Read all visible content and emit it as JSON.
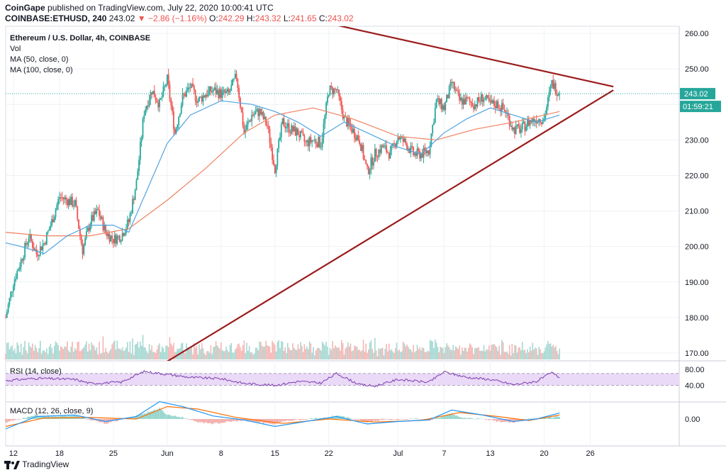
{
  "header": {
    "publisher": "CoinGape",
    "published_text": "published on TradingView.com, July 22, 2020 10:00:41 UTC",
    "symbol": "COINBASE:ETHUSD, 240",
    "last": "243.02",
    "change": "▼ −2.86 (−1.16%)",
    "ohlc": {
      "o_label": "O:",
      "o": "242.29",
      "h_label": "H:",
      "h": "243.32",
      "l_label": "L:",
      "l": "241.65",
      "c_label": "C:",
      "c": "243.02"
    }
  },
  "legend": {
    "title": "Ethereum / U.S. Dollar, 4h, COINBASE",
    "vol": "Vol",
    "ma50": "MA (50, close, 0)",
    "ma100": "MA (100, close, 0)"
  },
  "footer": {
    "brand": "TradingView"
  },
  "colors": {
    "up": "#26a69a",
    "down": "#ef5350",
    "ma50": "#4fa3e0",
    "ma100": "#f08060",
    "trendline": "#9b1c1c",
    "rsi": "#7b3fb0",
    "rsi_band": "#ead9f7",
    "macd": "#2196f3",
    "signal": "#ff6d00"
  },
  "chart_data": {
    "type": "candlestick",
    "title": "Ethereum / U.S. Dollar, 4h, COINBASE",
    "x_ticks": [
      "12",
      "18",
      "25",
      "Jun",
      "8",
      "15",
      "22",
      "Jul",
      "7",
      "13",
      "20",
      "26"
    ],
    "price_axis": {
      "ticks": [
        "260.00",
        "250.00",
        "240.00",
        "230.00",
        "220.00",
        "210.00",
        "200.00",
        "190.00",
        "180.00",
        "170.00"
      ],
      "ylim": [
        168,
        262
      ]
    },
    "last_price_label": "243.02",
    "countdown_label": "01:59:21",
    "close_path": [
      {
        "x": "May 11",
        "close": 180
      },
      {
        "x": "May 12",
        "close": 190
      },
      {
        "x": "May 13",
        "close": 196
      },
      {
        "x": "May 14",
        "close": 203
      },
      {
        "x": "May 15",
        "close": 198
      },
      {
        "x": "May 16",
        "close": 201
      },
      {
        "x": "May 17",
        "close": 207
      },
      {
        "x": "May 18",
        "close": 214
      },
      {
        "x": "May 19",
        "close": 213
      },
      {
        "x": "May 20",
        "close": 212
      },
      {
        "x": "May 21",
        "close": 199
      },
      {
        "x": "May 22",
        "close": 207
      },
      {
        "x": "May 23",
        "close": 210
      },
      {
        "x": "May 24",
        "close": 204
      },
      {
        "x": "May 25",
        "close": 202
      },
      {
        "x": "May 26",
        "close": 203
      },
      {
        "x": "May 27",
        "close": 207
      },
      {
        "x": "May 28",
        "close": 218
      },
      {
        "x": "May 29",
        "close": 238
      },
      {
        "x": "May 30",
        "close": 244
      },
      {
        "x": "May 31",
        "close": 240
      },
      {
        "x": "Jun 1",
        "close": 247
      },
      {
        "x": "Jun 2",
        "close": 232
      },
      {
        "x": "Jun 3",
        "close": 242
      },
      {
        "x": "Jun 4",
        "close": 245
      },
      {
        "x": "Jun 5",
        "close": 241
      },
      {
        "x": "Jun 6",
        "close": 243
      },
      {
        "x": "Jun 7",
        "close": 244
      },
      {
        "x": "Jun 8",
        "close": 243
      },
      {
        "x": "Jun 9",
        "close": 243
      },
      {
        "x": "Jun 10",
        "close": 248
      },
      {
        "x": "Jun 11",
        "close": 232
      },
      {
        "x": "Jun 12",
        "close": 237
      },
      {
        "x": "Jun 13",
        "close": 238
      },
      {
        "x": "Jun 14",
        "close": 234
      },
      {
        "x": "Jun 15",
        "close": 222
      },
      {
        "x": "Jun 16",
        "close": 235
      },
      {
        "x": "Jun 17",
        "close": 233
      },
      {
        "x": "Jun 18",
        "close": 232
      },
      {
        "x": "Jun 19",
        "close": 229
      },
      {
        "x": "Jun 20",
        "close": 230
      },
      {
        "x": "Jun 21",
        "close": 229
      },
      {
        "x": "Jun 22",
        "close": 244
      },
      {
        "x": "Jun 23",
        "close": 244
      },
      {
        "x": "Jun 24",
        "close": 236
      },
      {
        "x": "Jun 25",
        "close": 233
      },
      {
        "x": "Jun 26",
        "close": 230
      },
      {
        "x": "Jun 27",
        "close": 221
      },
      {
        "x": "Jun 28",
        "close": 226
      },
      {
        "x": "Jun 29",
        "close": 228
      },
      {
        "x": "Jun 30",
        "close": 226
      },
      {
        "x": "Jul 1",
        "close": 231
      },
      {
        "x": "Jul 2",
        "close": 229
      },
      {
        "x": "Jul 3",
        "close": 226
      },
      {
        "x": "Jul 4",
        "close": 226
      },
      {
        "x": "Jul 5",
        "close": 227
      },
      {
        "x": "Jul 6",
        "close": 241
      },
      {
        "x": "Jul 7",
        "close": 239
      },
      {
        "x": "Jul 8",
        "close": 246
      },
      {
        "x": "Jul 9",
        "close": 241
      },
      {
        "x": "Jul 10",
        "close": 241
      },
      {
        "x": "Jul 11",
        "close": 240
      },
      {
        "x": "Jul 12",
        "close": 242
      },
      {
        "x": "Jul 13",
        "close": 240
      },
      {
        "x": "Jul 14",
        "close": 240
      },
      {
        "x": "Jul 15",
        "close": 238
      },
      {
        "x": "Jul 16",
        "close": 233
      },
      {
        "x": "Jul 17",
        "close": 233
      },
      {
        "x": "Jul 18",
        "close": 235
      },
      {
        "x": "Jul 19",
        "close": 236
      },
      {
        "x": "Jul 20",
        "close": 236
      },
      {
        "x": "Jul 21",
        "close": 246
      },
      {
        "x": "Jul 22",
        "close": 243
      }
    ],
    "ma50_path": [
      {
        "x": "May 11",
        "value": 201
      },
      {
        "x": "May 13",
        "value": 200
      },
      {
        "x": "May 16",
        "value": 198
      },
      {
        "x": "May 19",
        "value": 203
      },
      {
        "x": "May 22",
        "value": 206
      },
      {
        "x": "May 25",
        "value": 206
      },
      {
        "x": "May 27",
        "value": 204
      },
      {
        "x": "May 29",
        "value": 214
      },
      {
        "x": "Jun 1",
        "value": 229
      },
      {
        "x": "Jun 4",
        "value": 237
      },
      {
        "x": "Jun 8",
        "value": 241
      },
      {
        "x": "Jun 12",
        "value": 240
      },
      {
        "x": "Jun 15",
        "value": 238
      },
      {
        "x": "Jun 18",
        "value": 235
      },
      {
        "x": "Jun 21",
        "value": 231
      },
      {
        "x": "Jun 24",
        "value": 235
      },
      {
        "x": "Jun 27",
        "value": 232
      },
      {
        "x": "Jul 1",
        "value": 228
      },
      {
        "x": "Jul 4",
        "value": 226
      },
      {
        "x": "Jul 7",
        "value": 232
      },
      {
        "x": "Jul 10",
        "value": 236
      },
      {
        "x": "Jul 13",
        "value": 239
      },
      {
        "x": "Jul 16",
        "value": 237
      },
      {
        "x": "Jul 19",
        "value": 235
      },
      {
        "x": "Jul 22",
        "value": 237
      }
    ],
    "ma100_path": [
      {
        "x": "May 11",
        "value": 204
      },
      {
        "x": "May 16",
        "value": 203
      },
      {
        "x": "May 22",
        "value": 203
      },
      {
        "x": "May 27",
        "value": 205
      },
      {
        "x": "Jun 1",
        "value": 213
      },
      {
        "x": "Jun 6",
        "value": 222
      },
      {
        "x": "Jun 11",
        "value": 232
      },
      {
        "x": "Jun 15",
        "value": 237
      },
      {
        "x": "Jun 20",
        "value": 239
      },
      {
        "x": "Jun 25",
        "value": 236
      },
      {
        "x": "Jul 1",
        "value": 231
      },
      {
        "x": "Jul 6",
        "value": 230
      },
      {
        "x": "Jul 11",
        "value": 233
      },
      {
        "x": "Jul 16",
        "value": 235
      },
      {
        "x": "Jul 22",
        "value": 238
      }
    ],
    "trendlines": [
      {
        "name": "descending resistance",
        "from": {
          "x": "May 11",
          "y": 283
        },
        "to": {
          "x": "Jul 29",
          "y": 245
        }
      },
      {
        "name": "ascending support",
        "from": {
          "x": "May 11",
          "y": 140
        },
        "to": {
          "x": "Jul 29",
          "y": 244
        }
      }
    ],
    "rsi": {
      "label": "RSI (14, close)",
      "band": [
        40,
        70
      ],
      "ticks": [
        "80.00",
        "40.00"
      ],
      "path": [
        {
          "x": "May 11",
          "value": 52
        },
        {
          "x": "May 15",
          "value": 58
        },
        {
          "x": "May 20",
          "value": 55
        },
        {
          "x": "May 22",
          "value": 45
        },
        {
          "x": "May 26",
          "value": 48
        },
        {
          "x": "May 29",
          "value": 75
        },
        {
          "x": "Jun 1",
          "value": 68
        },
        {
          "x": "Jun 4",
          "value": 60
        },
        {
          "x": "Jun 8",
          "value": 57
        },
        {
          "x": "Jun 11",
          "value": 45
        },
        {
          "x": "Jun 15",
          "value": 40
        },
        {
          "x": "Jun 18",
          "value": 50
        },
        {
          "x": "Jun 21",
          "value": 46
        },
        {
          "x": "Jun 23",
          "value": 70
        },
        {
          "x": "Jun 26",
          "value": 42
        },
        {
          "x": "Jun 28",
          "value": 38
        },
        {
          "x": "Jul 1",
          "value": 55
        },
        {
          "x": "Jul 5",
          "value": 48
        },
        {
          "x": "Jul 7",
          "value": 74
        },
        {
          "x": "Jul 10",
          "value": 60
        },
        {
          "x": "Jul 13",
          "value": 55
        },
        {
          "x": "Jul 16",
          "value": 42
        },
        {
          "x": "Jul 19",
          "value": 50
        },
        {
          "x": "Jul 21",
          "value": 72
        },
        {
          "x": "Jul 22",
          "value": 60
        }
      ]
    },
    "macd": {
      "label": "MACD (12, 26, close, 9)",
      "ticks": [
        "0.00"
      ],
      "macd_path": [
        {
          "x": "May 11",
          "value": -2.0
        },
        {
          "x": "May 15",
          "value": 0.5
        },
        {
          "x": "May 20",
          "value": 0.8
        },
        {
          "x": "May 24",
          "value": -0.5
        },
        {
          "x": "May 28",
          "value": 0.5
        },
        {
          "x": "May 31",
          "value": 3.5
        },
        {
          "x": "Jun 3",
          "value": 2.5
        },
        {
          "x": "Jun 7",
          "value": 0.6
        },
        {
          "x": "Jun 11",
          "value": -0.2
        },
        {
          "x": "Jun 15",
          "value": -1.5
        },
        {
          "x": "Jun 19",
          "value": -0.5
        },
        {
          "x": "Jun 23",
          "value": 0.5
        },
        {
          "x": "Jun 27",
          "value": -1.0
        },
        {
          "x": "Jul 1",
          "value": -0.5
        },
        {
          "x": "Jul 5",
          "value": -0.2
        },
        {
          "x": "Jul 8",
          "value": 1.8
        },
        {
          "x": "Jul 12",
          "value": 0.8
        },
        {
          "x": "Jul 16",
          "value": -0.5
        },
        {
          "x": "Jul 19",
          "value": 0.0
        },
        {
          "x": "Jul 22",
          "value": 1.2
        }
      ],
      "signal_path": [
        {
          "x": "May 11",
          "value": -1.5
        },
        {
          "x": "May 16",
          "value": 0.2
        },
        {
          "x": "May 22",
          "value": 0.3
        },
        {
          "x": "May 28",
          "value": 0.0
        },
        {
          "x": "Jun 1",
          "value": 2.5
        },
        {
          "x": "Jun 5",
          "value": 2.0
        },
        {
          "x": "Jun 10",
          "value": 0.3
        },
        {
          "x": "Jun 16",
          "value": -0.9
        },
        {
          "x": "Jun 22",
          "value": 0.0
        },
        {
          "x": "Jun 28",
          "value": -0.6
        },
        {
          "x": "Jul 4",
          "value": -0.3
        },
        {
          "x": "Jul 9",
          "value": 1.3
        },
        {
          "x": "Jul 14",
          "value": 0.5
        },
        {
          "x": "Jul 18",
          "value": -0.3
        },
        {
          "x": "Jul 22",
          "value": 0.8
        }
      ]
    }
  }
}
